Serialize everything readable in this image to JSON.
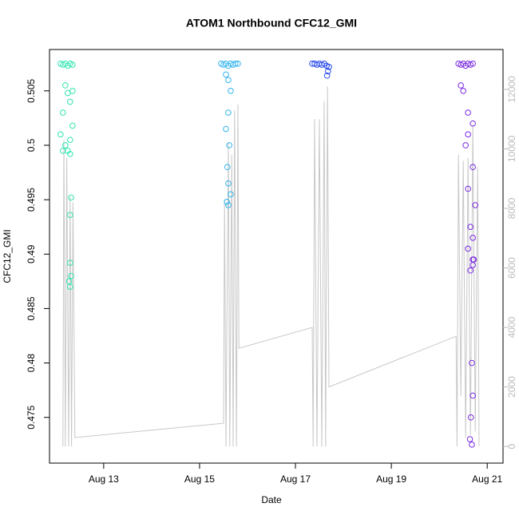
{
  "chart_data": {
    "type": "scatter",
    "title": "ATOM1 Northbound CFC12_GMI",
    "x_label": "Date",
    "y_label": "CFC12_GMI",
    "xlim": [
      11.87,
      21.33
    ],
    "ylim": [
      0.4708,
      0.5088
    ],
    "y2lim": [
      -560,
      13340
    ],
    "xticks": [
      {
        "value": 13,
        "label": "Aug 13"
      },
      {
        "value": 15,
        "label": "Aug 15"
      },
      {
        "value": 17,
        "label": "Aug 17"
      },
      {
        "value": 19,
        "label": "Aug 19"
      },
      {
        "value": 21,
        "label": "Aug 21"
      }
    ],
    "yticks": [
      0.475,
      0.48,
      0.485,
      0.49,
      0.495,
      0.5,
      0.505
    ],
    "y2ticks": [
      0,
      2000,
      4000,
      6000,
      8000,
      10000,
      12000
    ],
    "series": [
      {
        "type": "scatter",
        "color": "#2fe6b0",
        "x": [
          12.1,
          12.15,
          12.2,
          12.25,
          12.3,
          12.35,
          12.2,
          12.25,
          12.3,
          12.15,
          12.35,
          12.1,
          12.2,
          12.3,
          12.25,
          12.35,
          12.15,
          12.3,
          12.32,
          12.3,
          12.3,
          12.32,
          12.3,
          12.28
        ],
        "values": [
          0.5075,
          0.5074,
          0.5075,
          0.5073,
          0.5075,
          0.5074,
          0.5055,
          0.5048,
          0.504,
          0.503,
          0.505,
          0.501,
          0.5,
          0.5005,
          0.4995,
          0.5018,
          0.4995,
          0.4992,
          0.4952,
          0.4936,
          0.4892,
          0.488,
          0.487,
          0.4875
        ]
      },
      {
        "type": "scatter",
        "color": "#33b5ee",
        "x": [
          15.45,
          15.5,
          15.55,
          15.6,
          15.65,
          15.7,
          15.75,
          15.8,
          15.55,
          15.6,
          15.65,
          15.6,
          15.55,
          15.62,
          15.58,
          15.6,
          15.65,
          15.57,
          15.6
        ],
        "values": [
          0.5075,
          0.5074,
          0.5075,
          0.5073,
          0.5075,
          0.5074,
          0.5075,
          0.5075,
          0.5065,
          0.506,
          0.505,
          0.503,
          0.5015,
          0.5,
          0.498,
          0.4965,
          0.4955,
          0.4948,
          0.4945
        ]
      },
      {
        "type": "scatter",
        "color": "#2546ee",
        "x": [
          17.35,
          17.4,
          17.45,
          17.5,
          17.55,
          17.6,
          17.65,
          17.7,
          17.68,
          17.66
        ],
        "values": [
          0.5075,
          0.5075,
          0.5074,
          0.5075,
          0.5074,
          0.5075,
          0.5073,
          0.5072,
          0.5068,
          0.5064
        ]
      },
      {
        "type": "scatter",
        "color": "#7a2be2",
        "x": [
          20.4,
          20.45,
          20.5,
          20.55,
          20.6,
          20.65,
          20.7,
          20.45,
          20.5,
          20.6,
          20.7,
          20.6,
          20.55,
          20.7,
          20.6,
          20.75,
          20.65,
          20.7,
          20.6,
          20.72,
          20.65,
          20.7,
          20.7,
          20.68,
          20.7,
          20.66,
          20.64,
          20.68
        ],
        "values": [
          0.5075,
          0.5074,
          0.5075,
          0.5073,
          0.5075,
          0.5074,
          0.5075,
          0.5055,
          0.505,
          0.503,
          0.502,
          0.501,
          0.5,
          0.498,
          0.496,
          0.4945,
          0.4925,
          0.4915,
          0.4905,
          0.4895,
          0.4885,
          0.489,
          0.4895,
          0.48,
          0.477,
          0.475,
          0.473,
          0.4725
        ]
      },
      {
        "type": "line",
        "axis": "y2",
        "color": "#c8c8c8",
        "x": [
          12.15,
          12.17,
          12.2,
          12.23,
          12.27,
          12.3,
          12.33,
          12.36,
          12.4,
          15.5,
          15.52,
          15.55,
          15.6,
          15.63,
          15.67,
          15.7,
          15.73,
          15.77,
          15.8,
          15.82,
          17.35,
          17.37,
          17.4,
          17.45,
          17.5,
          17.55,
          17.6,
          17.63,
          17.67,
          17.7,
          20.35,
          20.37,
          20.4,
          20.45,
          20.5,
          20.55,
          20.6,
          20.65,
          20.7,
          20.75,
          20.8,
          20.83
        ],
        "values": [
          0,
          10300,
          0,
          9700,
          0,
          8400,
          0,
          8200,
          300,
          780,
          8300,
          0,
          10200,
          0,
          9800,
          0,
          11300,
          0,
          11500,
          3300,
          4000,
          0,
          11000,
          0,
          11000,
          0,
          11600,
          0,
          12100,
          2000,
          3700,
          0,
          9800,
          1700,
          9600,
          300,
          9700,
          400,
          10800,
          500,
          9400,
          0
        ]
      }
    ]
  }
}
